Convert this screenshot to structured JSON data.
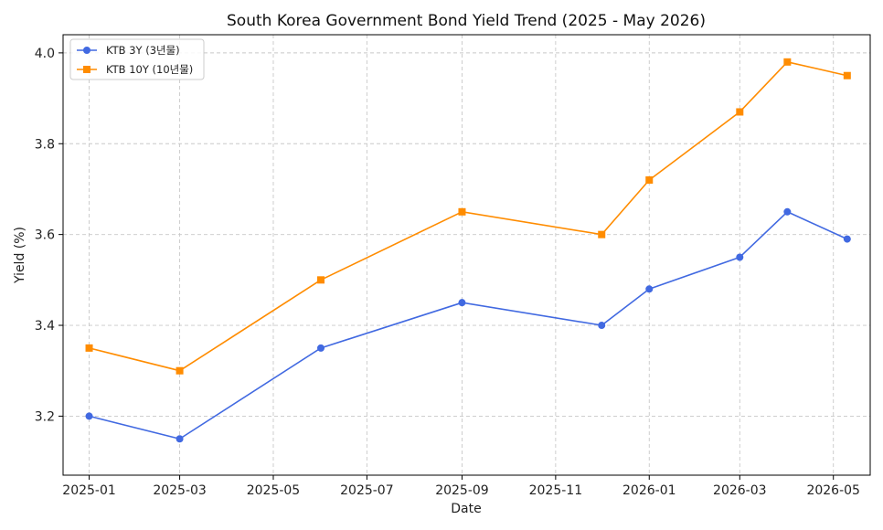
{
  "chart_data": {
    "type": "line",
    "title": "South Korea Government Bond Yield Trend (2025 - May 2026)",
    "xlabel": "Date",
    "ylabel": "Yield (%)",
    "x_ticks": [
      "2025-01",
      "2025-03",
      "2025-05",
      "2025-07",
      "2025-09",
      "2025-11",
      "2026-01",
      "2026-03",
      "2026-05"
    ],
    "y_ticks": [
      "3.2",
      "3.4",
      "3.6",
      "3.8",
      "4.0"
    ],
    "ylim": [
      3.07,
      4.04
    ],
    "xlim": [
      "2024-12-15",
      "2026-05-25"
    ],
    "grid": true,
    "legend_position": "top-left",
    "series": [
      {
        "name": "KTB 3Y (3년물)",
        "color": "#4169E1",
        "marker": "circle",
        "points": [
          {
            "x": "2025-01-01",
            "y": 3.2
          },
          {
            "x": "2025-03-01",
            "y": 3.15
          },
          {
            "x": "2025-06-01",
            "y": 3.35
          },
          {
            "x": "2025-09-01",
            "y": 3.45
          },
          {
            "x": "2025-12-01",
            "y": 3.4
          },
          {
            "x": "2026-01-01",
            "y": 3.48
          },
          {
            "x": "2026-03-01",
            "y": 3.55
          },
          {
            "x": "2026-04-01",
            "y": 3.65
          },
          {
            "x": "2026-05-10",
            "y": 3.59
          }
        ]
      },
      {
        "name": "KTB 10Y (10년물)",
        "color": "#FF8C00",
        "marker": "square",
        "points": [
          {
            "x": "2025-01-01",
            "y": 3.35
          },
          {
            "x": "2025-03-01",
            "y": 3.3
          },
          {
            "x": "2025-06-01",
            "y": 3.5
          },
          {
            "x": "2025-09-01",
            "y": 3.65
          },
          {
            "x": "2025-12-01",
            "y": 3.6
          },
          {
            "x": "2026-01-01",
            "y": 3.72
          },
          {
            "x": "2026-03-01",
            "y": 3.87
          },
          {
            "x": "2026-04-01",
            "y": 3.98
          },
          {
            "x": "2026-05-10",
            "y": 3.95
          }
        ]
      }
    ]
  }
}
